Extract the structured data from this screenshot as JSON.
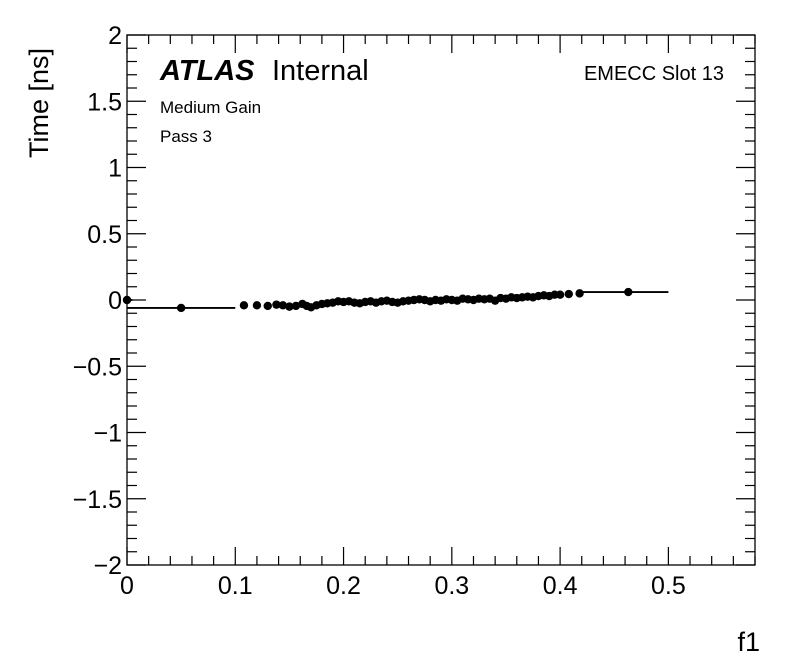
{
  "chart_data": {
    "type": "scatter",
    "xlabel": "f1",
    "ylabel": "Time [ns]",
    "xlim": [
      0,
      0.58
    ],
    "ylim": [
      -2,
      2
    ],
    "x_ticks": [
      0,
      0.1,
      0.2,
      0.3,
      0.4,
      0.5
    ],
    "x_tick_labels": [
      "0",
      "0.1",
      "0.2",
      "0.3",
      "0.4",
      "0.5"
    ],
    "y_ticks": [
      -2,
      -1.5,
      -1,
      -0.5,
      0,
      0.5,
      1,
      1.5,
      2
    ],
    "y_tick_labels": [
      "−2",
      "−1.5",
      "−1",
      "−0.5",
      "0",
      "0.5",
      "1",
      "1.5",
      "2"
    ],
    "grid": false,
    "points": [
      {
        "x": 0.0,
        "y": 0.0
      },
      {
        "x": 0.05,
        "y": -0.06
      },
      {
        "x": 0.108,
        "y": -0.04
      },
      {
        "x": 0.12,
        "y": -0.04
      },
      {
        "x": 0.13,
        "y": -0.045
      },
      {
        "x": 0.138,
        "y": -0.035
      },
      {
        "x": 0.144,
        "y": -0.04
      },
      {
        "x": 0.15,
        "y": -0.05
      },
      {
        "x": 0.156,
        "y": -0.045
      },
      {
        "x": 0.162,
        "y": -0.03
      },
      {
        "x": 0.166,
        "y": -0.045
      },
      {
        "x": 0.17,
        "y": -0.055
      },
      {
        "x": 0.175,
        "y": -0.04
      },
      {
        "x": 0.18,
        "y": -0.03
      },
      {
        "x": 0.185,
        "y": -0.025
      },
      {
        "x": 0.19,
        "y": -0.02
      },
      {
        "x": 0.195,
        "y": -0.01
      },
      {
        "x": 0.2,
        "y": -0.015
      },
      {
        "x": 0.205,
        "y": -0.01
      },
      {
        "x": 0.21,
        "y": -0.02
      },
      {
        "x": 0.215,
        "y": -0.025
      },
      {
        "x": 0.22,
        "y": -0.015
      },
      {
        "x": 0.225,
        "y": -0.01
      },
      {
        "x": 0.23,
        "y": -0.02
      },
      {
        "x": 0.235,
        "y": -0.01
      },
      {
        "x": 0.24,
        "y": -0.005
      },
      {
        "x": 0.245,
        "y": -0.015
      },
      {
        "x": 0.25,
        "y": -0.02
      },
      {
        "x": 0.255,
        "y": -0.01
      },
      {
        "x": 0.26,
        "y": -0.005
      },
      {
        "x": 0.265,
        "y": 0.0
      },
      {
        "x": 0.27,
        "y": 0.005
      },
      {
        "x": 0.275,
        "y": 0.0
      },
      {
        "x": 0.28,
        "y": -0.01
      },
      {
        "x": 0.285,
        "y": 0.0
      },
      {
        "x": 0.29,
        "y": -0.005
      },
      {
        "x": 0.295,
        "y": 0.005
      },
      {
        "x": 0.3,
        "y": 0.0
      },
      {
        "x": 0.305,
        "y": -0.005
      },
      {
        "x": 0.31,
        "y": 0.01
      },
      {
        "x": 0.315,
        "y": 0.005
      },
      {
        "x": 0.32,
        "y": 0.0
      },
      {
        "x": 0.325,
        "y": 0.01
      },
      {
        "x": 0.33,
        "y": 0.005
      },
      {
        "x": 0.335,
        "y": 0.01
      },
      {
        "x": 0.34,
        "y": -0.005
      },
      {
        "x": 0.345,
        "y": 0.015
      },
      {
        "x": 0.35,
        "y": 0.01
      },
      {
        "x": 0.355,
        "y": 0.02
      },
      {
        "x": 0.36,
        "y": 0.015
      },
      {
        "x": 0.365,
        "y": 0.02
      },
      {
        "x": 0.37,
        "y": 0.025
      },
      {
        "x": 0.375,
        "y": 0.02
      },
      {
        "x": 0.38,
        "y": 0.03
      },
      {
        "x": 0.385,
        "y": 0.035
      },
      {
        "x": 0.39,
        "y": 0.03
      },
      {
        "x": 0.395,
        "y": 0.04
      },
      {
        "x": 0.4,
        "y": 0.04
      },
      {
        "x": 0.408,
        "y": 0.045
      },
      {
        "x": 0.418,
        "y": 0.05
      },
      {
        "x": 0.463,
        "y": 0.06
      }
    ],
    "x_errors": [
      {
        "x_low": 0.0,
        "x_high": 0.005,
        "y": 0.0
      },
      {
        "x_low": 0.0,
        "x_high": 0.1,
        "y": -0.06
      },
      {
        "x_low": 0.418,
        "x_high": 0.5,
        "y": 0.06
      }
    ]
  },
  "annotations": {
    "atlas_bold": "ATLAS",
    "atlas_label": "Internal",
    "line1": "Medium Gain",
    "line2": "Pass 3",
    "slot": "EMECC Slot 13"
  },
  "colors": {
    "marker": "#000000",
    "axis": "#000000",
    "background": "#ffffff"
  }
}
